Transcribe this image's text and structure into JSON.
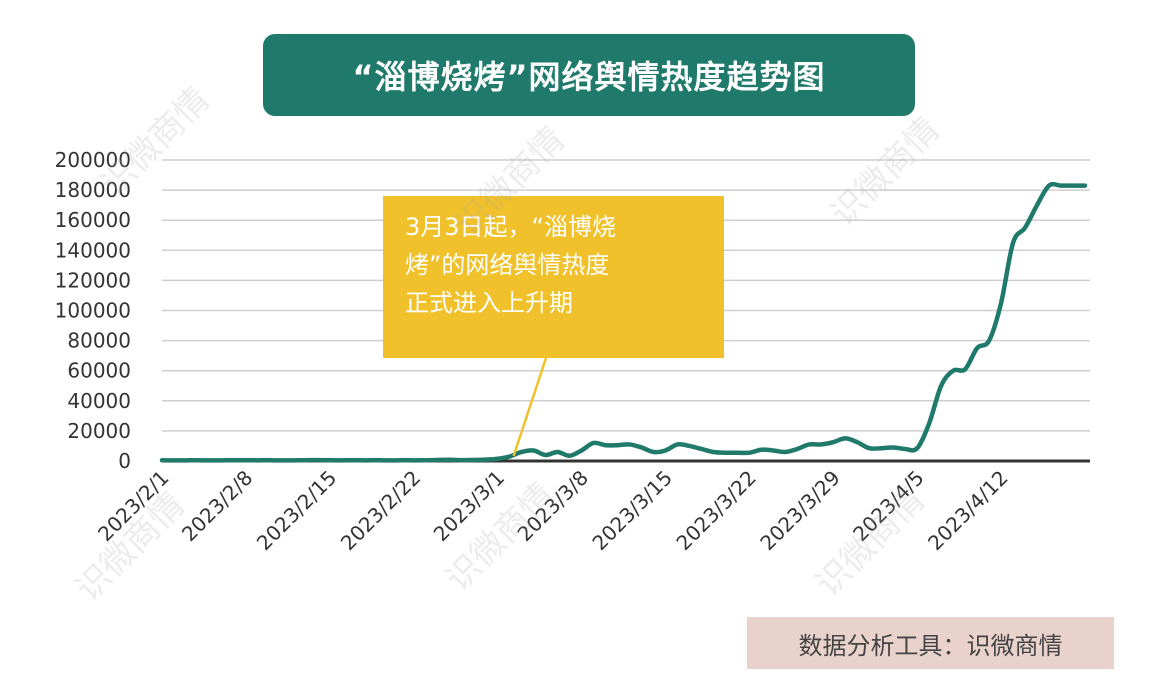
{
  "title": "“淄博烧烤”网络舆情热度趋势图",
  "annotation": {
    "lines": [
      "3月3日起，“淄博烧",
      "烤”的网络舆情热度",
      "正式进入上升期"
    ]
  },
  "source": "数据分析工具：识微商情",
  "watermark": "识微商情",
  "colors": {
    "title_bg": "#1f7a6c",
    "line": "#1f7a6c",
    "annotation_bg": "#f0c12a",
    "source_bg": "#e8d2cb",
    "grid": "#cfcfcf",
    "axis": "#333333"
  },
  "chart_data": {
    "type": "line",
    "title": "“淄博烧烤”网络舆情热度趋势图",
    "xlabel": "",
    "ylabel": "",
    "ylim": [
      0,
      200000
    ],
    "yticks": [
      "200000",
      "180000",
      "160000",
      "140000",
      "120000",
      "100000",
      "80000",
      "60000",
      "40000",
      "20000",
      "0"
    ],
    "xtick_labels": [
      "2023/2/1",
      "2023/2/8",
      "2023/2/15",
      "2023/2/22",
      "2023/3/1",
      "2023/3/8",
      "2023/3/15",
      "2023/3/22",
      "2023/3/29",
      "2023/4/5",
      "2023/4/12"
    ],
    "grid": true,
    "x": [
      "2023/2/1",
      "2023/2/2",
      "2023/2/3",
      "2023/2/4",
      "2023/2/5",
      "2023/2/6",
      "2023/2/7",
      "2023/2/8",
      "2023/2/9",
      "2023/2/10",
      "2023/2/11",
      "2023/2/12",
      "2023/2/13",
      "2023/2/14",
      "2023/2/15",
      "2023/2/16",
      "2023/2/17",
      "2023/2/18",
      "2023/2/19",
      "2023/2/20",
      "2023/2/21",
      "2023/2/22",
      "2023/2/23",
      "2023/2/24",
      "2023/2/25",
      "2023/2/26",
      "2023/2/27",
      "2023/2/28",
      "2023/3/1",
      "2023/3/2",
      "2023/3/3",
      "2023/3/4",
      "2023/3/5",
      "2023/3/6",
      "2023/3/7",
      "2023/3/8",
      "2023/3/9",
      "2023/3/10",
      "2023/3/11",
      "2023/3/12",
      "2023/3/13",
      "2023/3/14",
      "2023/3/15",
      "2023/3/16",
      "2023/3/17",
      "2023/3/18",
      "2023/3/19",
      "2023/3/20",
      "2023/3/21",
      "2023/3/22",
      "2023/3/23",
      "2023/3/24",
      "2023/3/25",
      "2023/3/26",
      "2023/3/27",
      "2023/3/28",
      "2023/3/29",
      "2023/3/30",
      "2023/3/31",
      "2023/4/1",
      "2023/4/2",
      "2023/4/3",
      "2023/4/4",
      "2023/4/5",
      "2023/4/6",
      "2023/4/7",
      "2023/4/8",
      "2023/4/9",
      "2023/4/10",
      "2023/4/11",
      "2023/4/12",
      "2023/4/13",
      "2023/4/14",
      "2023/4/15",
      "2023/4/16",
      "2023/4/17",
      "2023/4/18",
      "2023/4/19"
    ],
    "series": [
      {
        "values": [
          500,
          400,
          450,
          500,
          400,
          450,
          500,
          500,
          450,
          500,
          400,
          450,
          500,
          600,
          500,
          450,
          500,
          450,
          500,
          400,
          500,
          450,
          500,
          700,
          800,
          600,
          700,
          900,
          1500,
          3000,
          6000,
          7000,
          4000,
          6000,
          3500,
          7000,
          12000,
          10500,
          10500,
          11000,
          9000,
          6000,
          7000,
          11000,
          10000,
          8000,
          6000,
          5500,
          5500,
          5500,
          7500,
          7000,
          6000,
          8000,
          11000,
          11000,
          12500,
          15000,
          12500,
          8500,
          8500,
          9000,
          8000,
          8500,
          25000,
          50000,
          60000,
          61000,
          75000,
          80000,
          105000,
          145000,
          155000,
          170000,
          183000,
          183000,
          183000,
          183000
        ]
      }
    ]
  }
}
